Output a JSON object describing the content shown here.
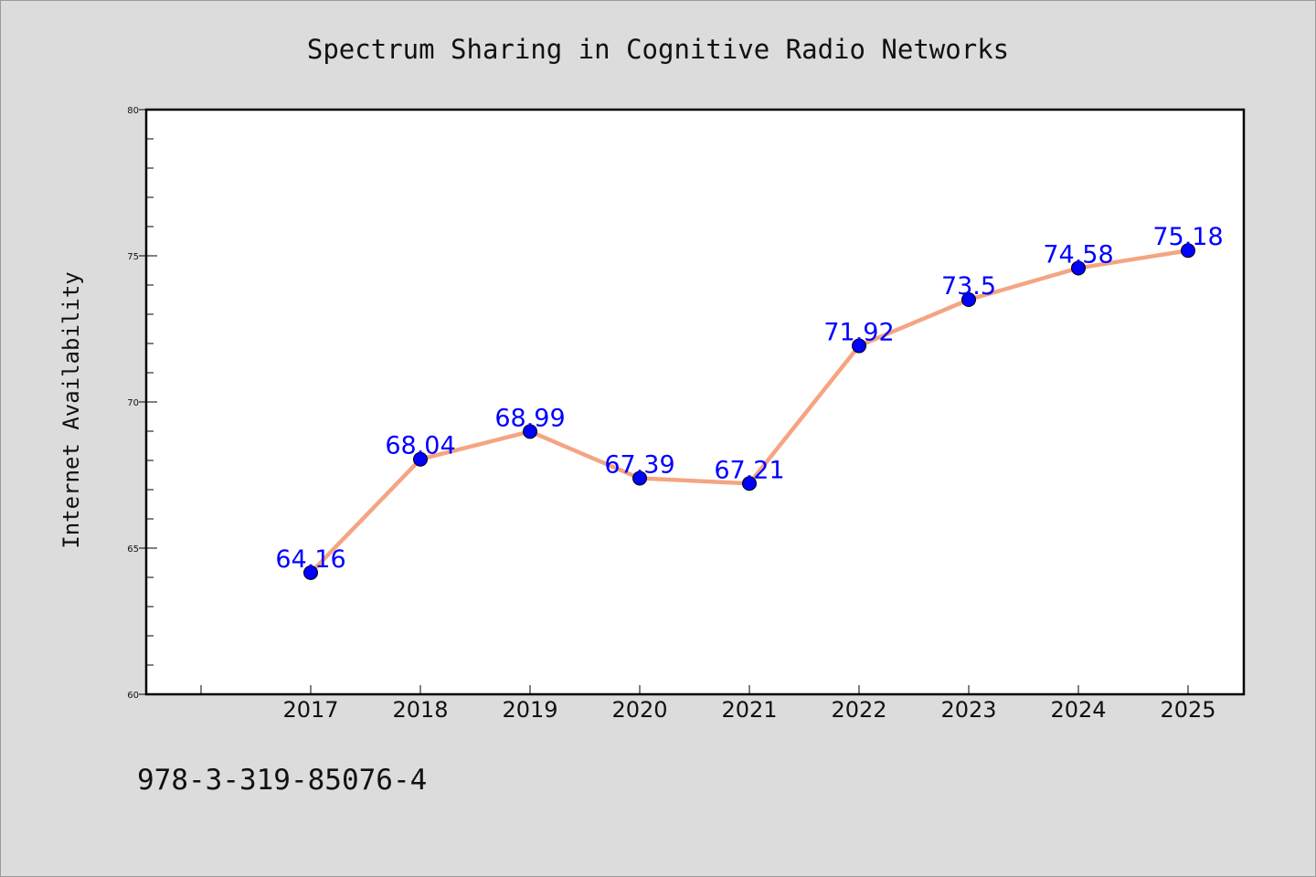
{
  "chart_data": {
    "type": "line",
    "title": "Spectrum Sharing in Cognitive Radio Networks",
    "xlabel": "",
    "ylabel": "Internet Availability",
    "categories": [
      "2017",
      "2018",
      "2019",
      "2020",
      "2021",
      "2022",
      "2023",
      "2024",
      "2025"
    ],
    "series": [
      {
        "values": [
          64.16,
          68.04,
          68.99,
          67.39,
          67.21,
          71.92,
          73.5,
          74.58,
          75.18
        ],
        "data_labels": [
          "64.16",
          "68.04",
          "68.99",
          "67.39",
          "67.21",
          "71.92",
          "73.5",
          "74.58",
          "75.18"
        ]
      }
    ],
    "ylim": [
      60,
      80
    ],
    "yticks": [
      60,
      65,
      70,
      75,
      80
    ],
    "ytick_labels": [
      "60",
      "65",
      "70",
      "75",
      "80"
    ],
    "grid": false,
    "line_color": "#f4a582",
    "marker_color": "#0000ff",
    "label_color": "#0000ff"
  },
  "footer": {
    "text": "978-3-319-85076-4"
  }
}
